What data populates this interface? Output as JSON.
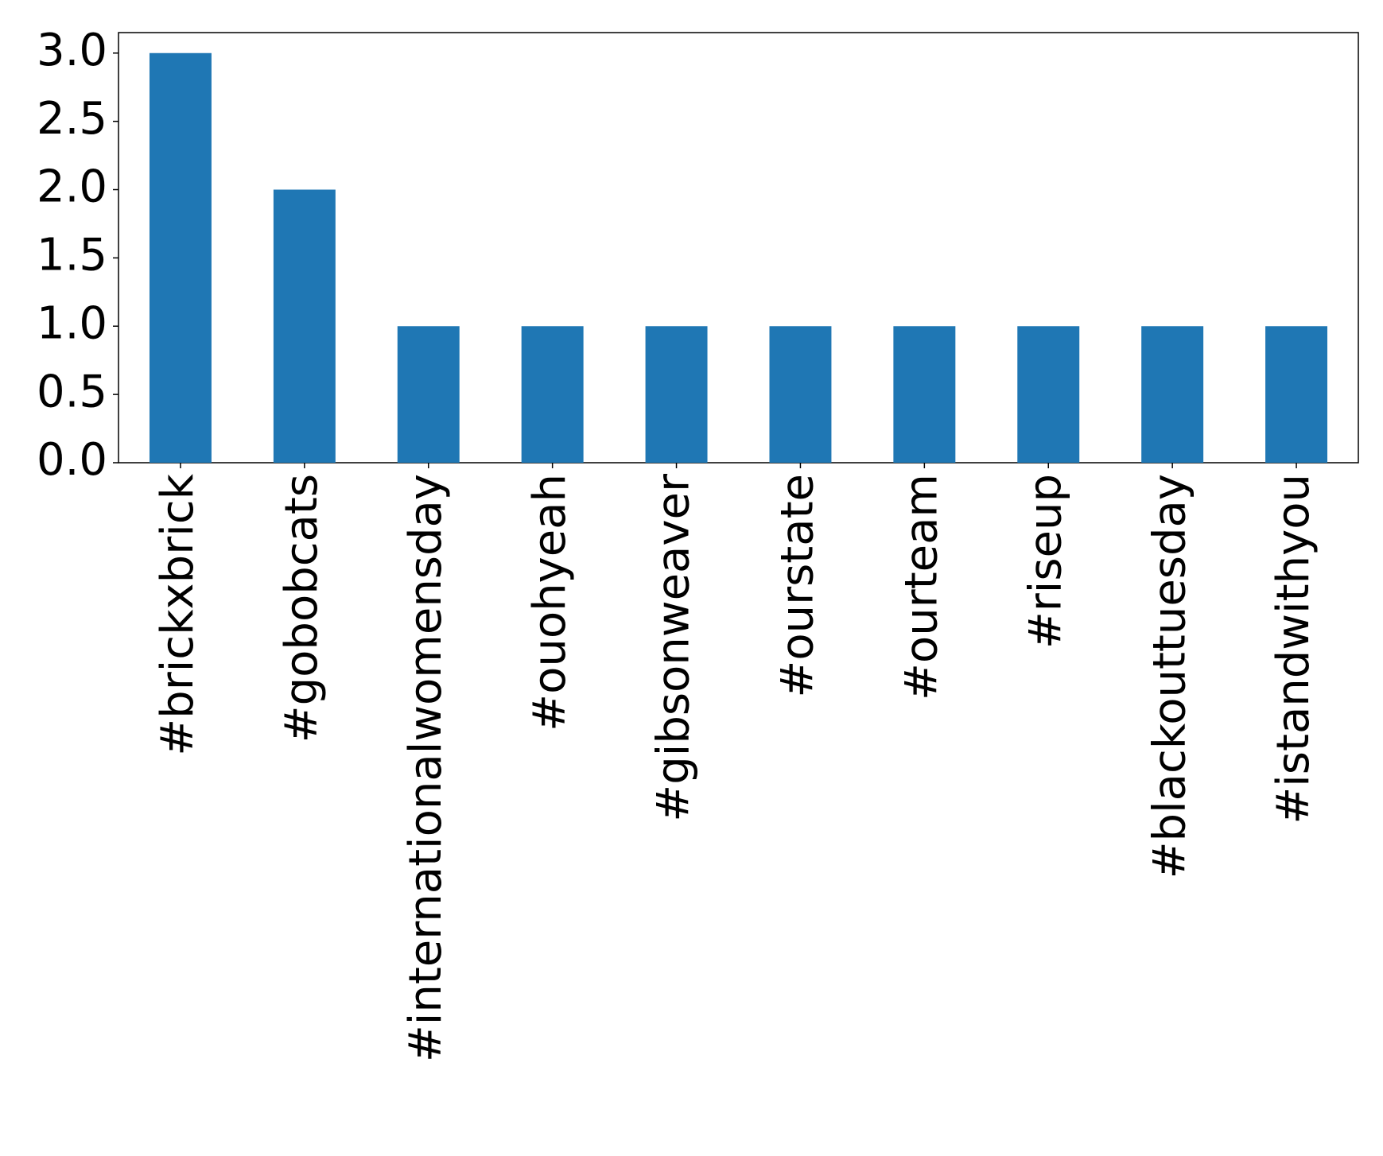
{
  "chart_data": {
    "type": "bar",
    "categories": [
      "#brickxbrick",
      "#gobobcats",
      "#internationalwomensday",
      "#ouohyeah",
      "#gibsonweaver",
      "#ourstate",
      "#ourteam",
      "#riseup",
      "#blackouttuesday",
      "#istandwithyou"
    ],
    "values": [
      3,
      2,
      1,
      1,
      1,
      1,
      1,
      1,
      1,
      1
    ],
    "color": "#1f77b4",
    "ylim": [
      0,
      3.15
    ],
    "yticks": [
      {
        "value": 0,
        "label": "0.0"
      },
      0.5,
      {
        "value": 1,
        "label": "1.0"
      },
      1.5,
      {
        "value": 2,
        "label": "2.0"
      },
      2.5,
      {
        "value": 3,
        "label": "3.0"
      }
    ],
    "grid": false
  }
}
